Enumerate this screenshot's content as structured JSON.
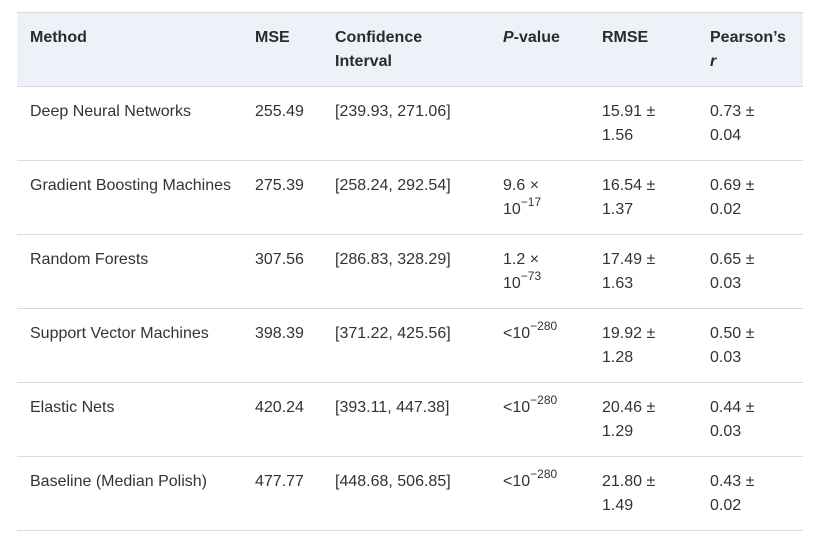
{
  "table": {
    "headers": {
      "method": "Method",
      "mse": "MSE",
      "ci_line1": "Confidence",
      "ci_line2": "Interval",
      "pvalue_italic": "P",
      "pvalue_rest": "-value",
      "rmse": "RMSE",
      "pearson_line1": "Pearson’s",
      "pearson_line2": "r"
    },
    "rows": [
      {
        "method": "Deep Neural Networks",
        "mse": "255.49",
        "ci": "[239.93, 271.06]",
        "p_mantissa": "",
        "p_exp": "",
        "rmse_a": "15.91 ±",
        "rmse_b": "1.56",
        "r_a": "0.73 ±",
        "r_b": "0.04"
      },
      {
        "method": "Gradient Boosting Machines",
        "mse": "275.39",
        "ci": "[258.24, 292.54]",
        "p_mantissa": "9.6 ×",
        "p_base": "10",
        "p_exp": "−17",
        "rmse_a": "16.54 ±",
        "rmse_b": "1.37",
        "r_a": "0.69 ±",
        "r_b": "0.02"
      },
      {
        "method": "Random Forests",
        "mse": "307.56",
        "ci": "[286.83, 328.29]",
        "p_mantissa": "1.2 ×",
        "p_base": "10",
        "p_exp": "−73",
        "rmse_a": "17.49 ±",
        "rmse_b": "1.63",
        "r_a": "0.65 ±",
        "r_b": "0.03"
      },
      {
        "method": "Support Vector Machines",
        "mse": "398.39",
        "ci": "[371.22, 425.56]",
        "p_base": "<10",
        "p_exp": "−280",
        "rmse_a": "19.92 ±",
        "rmse_b": "1.28",
        "r_a": "0.50 ±",
        "r_b": "0.03"
      },
      {
        "method": "Elastic Nets",
        "mse": "420.24",
        "ci": "[393.11, 447.38]",
        "p_base": "<10",
        "p_exp": "−280",
        "rmse_a": "20.46 ±",
        "rmse_b": "1.29",
        "r_a": "0.44 ±",
        "r_b": "0.03"
      },
      {
        "method": "Baseline (Median Polish)",
        "mse": "477.77",
        "ci": "[448.68, 506.85]",
        "p_base": "<10",
        "p_exp": "−280",
        "rmse_a": "21.80 ±",
        "rmse_b": "1.49",
        "r_a": "0.43 ±",
        "r_b": "0.02"
      }
    ]
  }
}
